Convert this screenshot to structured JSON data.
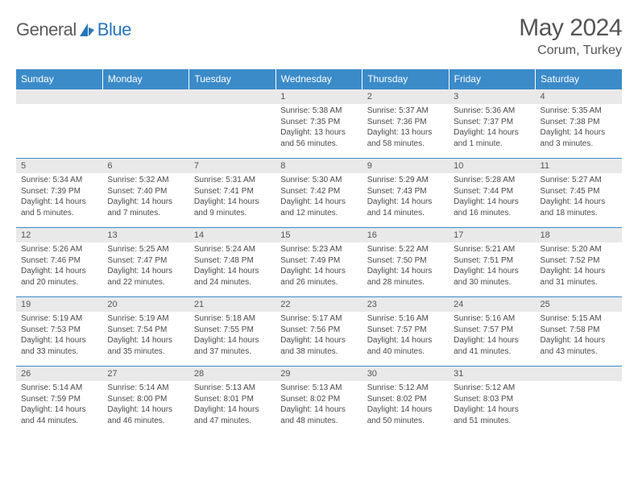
{
  "brand": {
    "name1": "General",
    "name2": "Blue"
  },
  "title": {
    "month_year": "May 2024",
    "location": "Corum, Turkey"
  },
  "colors": {
    "header_bg": "#3b8bc9",
    "daynum_bg": "#e9e9e9",
    "row_border": "#3b8bc9"
  },
  "day_names": [
    "Sunday",
    "Monday",
    "Tuesday",
    "Wednesday",
    "Thursday",
    "Friday",
    "Saturday"
  ],
  "weeks": [
    [
      {
        "n": "",
        "sunrise": "",
        "sunset": "",
        "daylight": ""
      },
      {
        "n": "",
        "sunrise": "",
        "sunset": "",
        "daylight": ""
      },
      {
        "n": "",
        "sunrise": "",
        "sunset": "",
        "daylight": ""
      },
      {
        "n": "1",
        "sunrise": "Sunrise: 5:38 AM",
        "sunset": "Sunset: 7:35 PM",
        "daylight": "Daylight: 13 hours and 56 minutes."
      },
      {
        "n": "2",
        "sunrise": "Sunrise: 5:37 AM",
        "sunset": "Sunset: 7:36 PM",
        "daylight": "Daylight: 13 hours and 58 minutes."
      },
      {
        "n": "3",
        "sunrise": "Sunrise: 5:36 AM",
        "sunset": "Sunset: 7:37 PM",
        "daylight": "Daylight: 14 hours and 1 minute."
      },
      {
        "n": "4",
        "sunrise": "Sunrise: 5:35 AM",
        "sunset": "Sunset: 7:38 PM",
        "daylight": "Daylight: 14 hours and 3 minutes."
      }
    ],
    [
      {
        "n": "5",
        "sunrise": "Sunrise: 5:34 AM",
        "sunset": "Sunset: 7:39 PM",
        "daylight": "Daylight: 14 hours and 5 minutes."
      },
      {
        "n": "6",
        "sunrise": "Sunrise: 5:32 AM",
        "sunset": "Sunset: 7:40 PM",
        "daylight": "Daylight: 14 hours and 7 minutes."
      },
      {
        "n": "7",
        "sunrise": "Sunrise: 5:31 AM",
        "sunset": "Sunset: 7:41 PM",
        "daylight": "Daylight: 14 hours and 9 minutes."
      },
      {
        "n": "8",
        "sunrise": "Sunrise: 5:30 AM",
        "sunset": "Sunset: 7:42 PM",
        "daylight": "Daylight: 14 hours and 12 minutes."
      },
      {
        "n": "9",
        "sunrise": "Sunrise: 5:29 AM",
        "sunset": "Sunset: 7:43 PM",
        "daylight": "Daylight: 14 hours and 14 minutes."
      },
      {
        "n": "10",
        "sunrise": "Sunrise: 5:28 AM",
        "sunset": "Sunset: 7:44 PM",
        "daylight": "Daylight: 14 hours and 16 minutes."
      },
      {
        "n": "11",
        "sunrise": "Sunrise: 5:27 AM",
        "sunset": "Sunset: 7:45 PM",
        "daylight": "Daylight: 14 hours and 18 minutes."
      }
    ],
    [
      {
        "n": "12",
        "sunrise": "Sunrise: 5:26 AM",
        "sunset": "Sunset: 7:46 PM",
        "daylight": "Daylight: 14 hours and 20 minutes."
      },
      {
        "n": "13",
        "sunrise": "Sunrise: 5:25 AM",
        "sunset": "Sunset: 7:47 PM",
        "daylight": "Daylight: 14 hours and 22 minutes."
      },
      {
        "n": "14",
        "sunrise": "Sunrise: 5:24 AM",
        "sunset": "Sunset: 7:48 PM",
        "daylight": "Daylight: 14 hours and 24 minutes."
      },
      {
        "n": "15",
        "sunrise": "Sunrise: 5:23 AM",
        "sunset": "Sunset: 7:49 PM",
        "daylight": "Daylight: 14 hours and 26 minutes."
      },
      {
        "n": "16",
        "sunrise": "Sunrise: 5:22 AM",
        "sunset": "Sunset: 7:50 PM",
        "daylight": "Daylight: 14 hours and 28 minutes."
      },
      {
        "n": "17",
        "sunrise": "Sunrise: 5:21 AM",
        "sunset": "Sunset: 7:51 PM",
        "daylight": "Daylight: 14 hours and 30 minutes."
      },
      {
        "n": "18",
        "sunrise": "Sunrise: 5:20 AM",
        "sunset": "Sunset: 7:52 PM",
        "daylight": "Daylight: 14 hours and 31 minutes."
      }
    ],
    [
      {
        "n": "19",
        "sunrise": "Sunrise: 5:19 AM",
        "sunset": "Sunset: 7:53 PM",
        "daylight": "Daylight: 14 hours and 33 minutes."
      },
      {
        "n": "20",
        "sunrise": "Sunrise: 5:19 AM",
        "sunset": "Sunset: 7:54 PM",
        "daylight": "Daylight: 14 hours and 35 minutes."
      },
      {
        "n": "21",
        "sunrise": "Sunrise: 5:18 AM",
        "sunset": "Sunset: 7:55 PM",
        "daylight": "Daylight: 14 hours and 37 minutes."
      },
      {
        "n": "22",
        "sunrise": "Sunrise: 5:17 AM",
        "sunset": "Sunset: 7:56 PM",
        "daylight": "Daylight: 14 hours and 38 minutes."
      },
      {
        "n": "23",
        "sunrise": "Sunrise: 5:16 AM",
        "sunset": "Sunset: 7:57 PM",
        "daylight": "Daylight: 14 hours and 40 minutes."
      },
      {
        "n": "24",
        "sunrise": "Sunrise: 5:16 AM",
        "sunset": "Sunset: 7:57 PM",
        "daylight": "Daylight: 14 hours and 41 minutes."
      },
      {
        "n": "25",
        "sunrise": "Sunrise: 5:15 AM",
        "sunset": "Sunset: 7:58 PM",
        "daylight": "Daylight: 14 hours and 43 minutes."
      }
    ],
    [
      {
        "n": "26",
        "sunrise": "Sunrise: 5:14 AM",
        "sunset": "Sunset: 7:59 PM",
        "daylight": "Daylight: 14 hours and 44 minutes."
      },
      {
        "n": "27",
        "sunrise": "Sunrise: 5:14 AM",
        "sunset": "Sunset: 8:00 PM",
        "daylight": "Daylight: 14 hours and 46 minutes."
      },
      {
        "n": "28",
        "sunrise": "Sunrise: 5:13 AM",
        "sunset": "Sunset: 8:01 PM",
        "daylight": "Daylight: 14 hours and 47 minutes."
      },
      {
        "n": "29",
        "sunrise": "Sunrise: 5:13 AM",
        "sunset": "Sunset: 8:02 PM",
        "daylight": "Daylight: 14 hours and 48 minutes."
      },
      {
        "n": "30",
        "sunrise": "Sunrise: 5:12 AM",
        "sunset": "Sunset: 8:02 PM",
        "daylight": "Daylight: 14 hours and 50 minutes."
      },
      {
        "n": "31",
        "sunrise": "Sunrise: 5:12 AM",
        "sunset": "Sunset: 8:03 PM",
        "daylight": "Daylight: 14 hours and 51 minutes."
      },
      {
        "n": "",
        "sunrise": "",
        "sunset": "",
        "daylight": ""
      }
    ]
  ]
}
